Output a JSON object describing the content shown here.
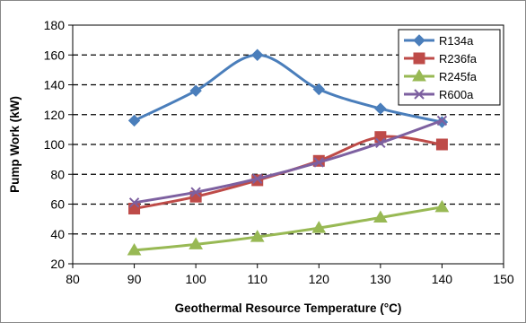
{
  "chart_data": {
    "type": "line",
    "title": "",
    "xlabel": "Geothermal Resource Temperature (°C)",
    "ylabel": "Pump Work (kW)",
    "xlim": [
      80,
      150
    ],
    "ylim": [
      20,
      180
    ],
    "xticks": [
      80,
      90,
      100,
      110,
      120,
      130,
      140,
      150
    ],
    "yticks": [
      20,
      40,
      60,
      80,
      100,
      120,
      140,
      160,
      180
    ],
    "grid": "horizontal dashed",
    "legend_position": "top-right",
    "x": [
      90,
      100,
      110,
      120,
      130,
      140
    ],
    "series": [
      {
        "name": "R134a",
        "values": [
          116,
          136,
          160,
          137,
          124,
          115
        ],
        "color": "#4a7ebb",
        "marker": "diamond",
        "smooth": true
      },
      {
        "name": "R236fa",
        "values": [
          57,
          65,
          76,
          89,
          105,
          100
        ],
        "color": "#be4b48",
        "marker": "square",
        "smooth": true
      },
      {
        "name": "R245fa",
        "values": [
          29,
          33,
          38,
          44,
          51,
          58
        ],
        "color": "#98b954",
        "marker": "triangle",
        "smooth": true
      },
      {
        "name": "R600a",
        "values": [
          61,
          68,
          77,
          88,
          101,
          116
        ],
        "color": "#7d60a0",
        "marker": "x",
        "smooth": true
      }
    ]
  }
}
